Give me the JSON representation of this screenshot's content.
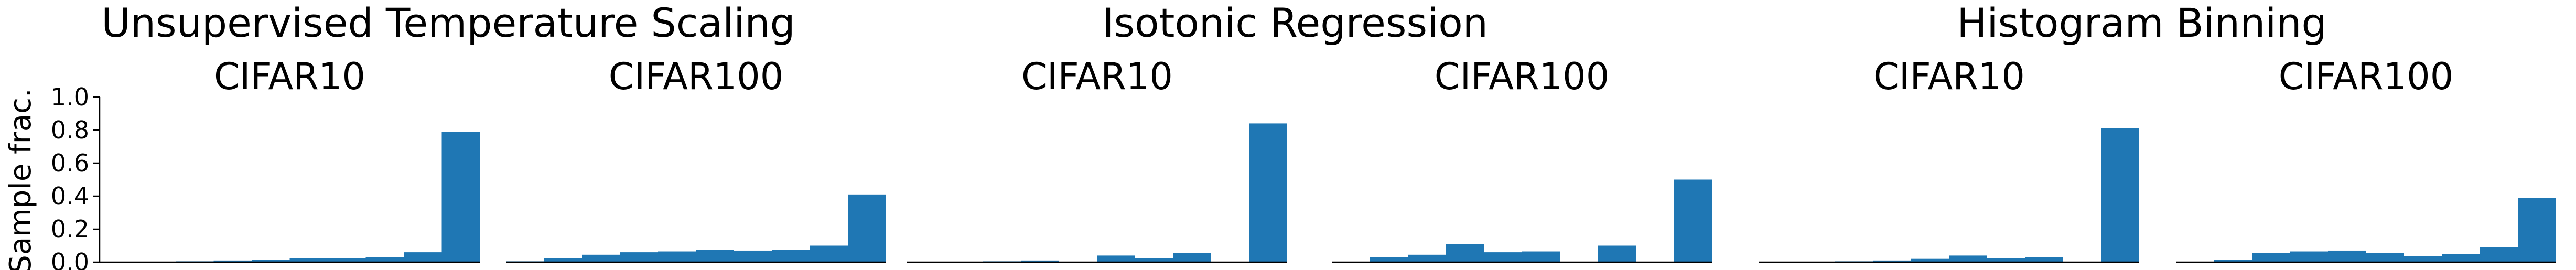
{
  "figure": {
    "ylabel": "Sample frac.",
    "groups": [
      {
        "title": "Unsupervised Temperature Scaling"
      },
      {
        "title": "Isotonic Regression"
      },
      {
        "title": "Histogram Binning"
      }
    ]
  },
  "chart_data": [
    {
      "type": "bar",
      "group": "Unsupervised Temperature Scaling",
      "title": "CIFAR10",
      "x": [
        0.05,
        0.15,
        0.25,
        0.35,
        0.45,
        0.55,
        0.65,
        0.75,
        0.85,
        0.95
      ],
      "values": [
        0.0,
        0.0,
        0.005,
        0.01,
        0.015,
        0.025,
        0.025,
        0.03,
        0.06,
        0.79
      ],
      "ylim": [
        0,
        1
      ],
      "yticks": [
        0.0,
        0.2,
        0.4,
        0.6,
        0.8,
        1.0
      ],
      "ytick_labels": [
        "0.0",
        "0.2",
        "0.4",
        "0.6",
        "0.8",
        "1.0"
      ],
      "color": "#1f77b4",
      "grid": false
    },
    {
      "type": "bar",
      "group": "Unsupervised Temperature Scaling",
      "title": "CIFAR100",
      "x": [
        0.05,
        0.15,
        0.25,
        0.35,
        0.45,
        0.55,
        0.65,
        0.75,
        0.85,
        0.95
      ],
      "values": [
        0.005,
        0.025,
        0.045,
        0.06,
        0.065,
        0.075,
        0.07,
        0.075,
        0.1,
        0.41
      ],
      "ylim": [
        0,
        1
      ],
      "color": "#1f77b4",
      "grid": false
    },
    {
      "type": "bar",
      "group": "Isotonic Regression",
      "title": "CIFAR10",
      "x": [
        0.05,
        0.15,
        0.25,
        0.35,
        0.45,
        0.55,
        0.65,
        0.75,
        0.85,
        0.95
      ],
      "values": [
        0.0,
        0.0,
        0.005,
        0.01,
        0.0,
        0.04,
        0.025,
        0.055,
        0.0,
        0.84
      ],
      "ylim": [
        0,
        1
      ],
      "color": "#1f77b4",
      "grid": false
    },
    {
      "type": "bar",
      "group": "Isotonic Regression",
      "title": "CIFAR100",
      "x": [
        0.05,
        0.15,
        0.25,
        0.35,
        0.45,
        0.55,
        0.65,
        0.75,
        0.85,
        0.95
      ],
      "values": [
        0.0,
        0.03,
        0.045,
        0.11,
        0.06,
        0.065,
        0.0,
        0.1,
        0.0,
        0.5
      ],
      "ylim": [
        0,
        1
      ],
      "color": "#1f77b4",
      "grid": false
    },
    {
      "type": "bar",
      "group": "Histogram Binning",
      "title": "CIFAR10",
      "x": [
        0.05,
        0.15,
        0.25,
        0.35,
        0.45,
        0.55,
        0.65,
        0.75,
        0.85,
        0.95
      ],
      "values": [
        0.0,
        0.0,
        0.005,
        0.01,
        0.02,
        0.04,
        0.025,
        0.03,
        0.0,
        0.81
      ],
      "ylim": [
        0,
        1
      ],
      "color": "#1f77b4",
      "grid": false
    },
    {
      "type": "bar",
      "group": "Histogram Binning",
      "title": "CIFAR100",
      "x": [
        0.05,
        0.15,
        0.25,
        0.35,
        0.45,
        0.55,
        0.65,
        0.75,
        0.85,
        0.95
      ],
      "values": [
        0.0,
        0.015,
        0.055,
        0.065,
        0.07,
        0.055,
        0.035,
        0.05,
        0.09,
        0.39
      ],
      "ylim": [
        0,
        1
      ],
      "color": "#1f77b4",
      "grid": false
    }
  ]
}
